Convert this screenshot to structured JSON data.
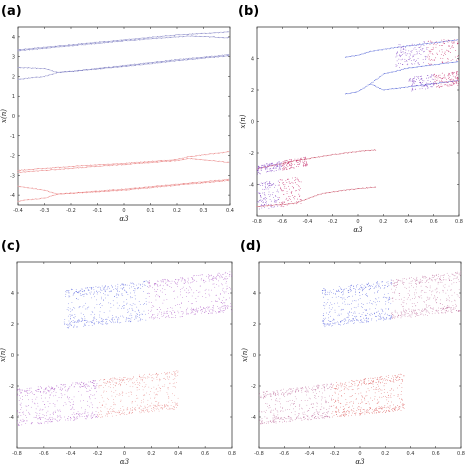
{
  "chart_data": [
    {
      "panel": "(a)",
      "type": "scatter",
      "xlabel": "α3",
      "ylabel": "x(n)",
      "xlim": [
        -0.4,
        0.4
      ],
      "ylim": [
        -4.5,
        4.5
      ],
      "x_ticks": [
        "-0.4",
        "-0.3",
        "-0.2",
        "-0.1",
        "0",
        "0.1",
        "0.2",
        "0.3",
        "0.4"
      ],
      "y_ticks": [
        "4",
        "3",
        "2",
        "1",
        "0",
        "-1",
        "-2",
        "-3",
        "-4"
      ],
      "branches": [
        {
          "color": "#6a6ab8",
          "points": [
            [
              -0.4,
              3.35
            ],
            [
              -0.2,
              3.6
            ],
            [
              0.0,
              3.85
            ],
            [
              0.2,
              4.1
            ],
            [
              0.4,
              4.25
            ]
          ]
        },
        {
          "color": "#6a6ab8",
          "points": [
            [
              -0.4,
              3.3
            ],
            [
              -0.2,
              3.55
            ],
            [
              0.0,
              3.8
            ],
            [
              0.2,
              4.0
            ],
            [
              0.25,
              4.05
            ],
            [
              0.4,
              3.95
            ]
          ]
        },
        {
          "color": "#6a6ab8",
          "points": [
            [
              -0.4,
              2.45
            ],
            [
              -0.3,
              2.4
            ],
            [
              -0.25,
              2.2
            ],
            [
              -0.2,
              2.25
            ],
            [
              0.0,
              2.55
            ],
            [
              0.2,
              2.85
            ],
            [
              0.4,
              3.1
            ]
          ]
        },
        {
          "color": "#6a6ab8",
          "points": [
            [
              -0.4,
              1.85
            ],
            [
              -0.3,
              2.0
            ],
            [
              -0.25,
              2.2
            ],
            [
              0.0,
              2.5
            ],
            [
              0.2,
              2.8
            ],
            [
              0.4,
              3.05
            ]
          ]
        },
        {
          "color": "#e46a6a",
          "points": [
            [
              -0.4,
              -2.75
            ],
            [
              -0.2,
              -2.55
            ],
            [
              0.0,
              -2.4
            ],
            [
              0.2,
              -2.2
            ],
            [
              0.25,
              -2.05
            ],
            [
              0.4,
              -1.8
            ]
          ]
        },
        {
          "color": "#e46a6a",
          "points": [
            [
              -0.4,
              -2.85
            ],
            [
              -0.2,
              -2.65
            ],
            [
              0.0,
              -2.45
            ],
            [
              0.2,
              -2.25
            ],
            [
              0.25,
              -2.15
            ],
            [
              0.4,
              -2.35
            ]
          ]
        },
        {
          "color": "#e46a6a",
          "points": [
            [
              -0.4,
              -3.55
            ],
            [
              -0.3,
              -3.75
            ],
            [
              -0.25,
              -3.95
            ],
            [
              0.0,
              -3.7
            ],
            [
              0.2,
              -3.45
            ],
            [
              0.4,
              -3.2
            ]
          ]
        },
        {
          "color": "#e46a6a",
          "points": [
            [
              -0.4,
              -4.3
            ],
            [
              -0.3,
              -4.15
            ],
            [
              -0.25,
              -3.95
            ],
            [
              0.0,
              -3.75
            ],
            [
              0.2,
              -3.5
            ],
            [
              0.4,
              -3.25
            ]
          ]
        }
      ]
    },
    {
      "panel": "(b)",
      "type": "scatter",
      "xlabel": "α3",
      "ylabel": "x(n)",
      "xlim": [
        -0.8,
        0.8
      ],
      "ylim": [
        -6,
        6
      ],
      "x_ticks": [
        "-0.8",
        "-0.6",
        "-0.4",
        "-0.2",
        "0",
        "0.2",
        "0.4",
        "0.6",
        "0.8"
      ],
      "y_ticks": [
        "4",
        "2",
        "0",
        "-2",
        "-4"
      ],
      "branches": [
        {
          "color": "#3a4ed0",
          "points": [
            [
              -0.1,
              4.1
            ],
            [
              0.0,
              4.2
            ],
            [
              0.1,
              4.45
            ],
            [
              0.3,
              4.7
            ],
            [
              0.5,
              4.9
            ],
            [
              0.8,
              5.2
            ]
          ]
        },
        {
          "color": "#3a4ed0",
          "points": [
            [
              -0.1,
              1.75
            ],
            [
              0.0,
              1.9
            ],
            [
              0.1,
              2.4
            ],
            [
              0.2,
              3.0
            ],
            [
              0.4,
              3.4
            ],
            [
              0.8,
              3.8
            ]
          ]
        },
        {
          "color": "#3a4ed0",
          "points": [
            [
              0.1,
              2.4
            ],
            [
              0.2,
              2.0
            ],
            [
              0.4,
              2.2
            ],
            [
              0.8,
              2.6
            ]
          ]
        },
        {
          "color": "#c0304a",
          "points": [
            [
              -0.8,
              -3.0
            ],
            [
              -0.5,
              -2.5
            ],
            [
              -0.2,
              -2.1
            ],
            [
              0.0,
              -1.9
            ],
            [
              0.15,
              -1.8
            ]
          ]
        },
        {
          "color": "#c0304a",
          "points": [
            [
              -0.8,
              -5.4
            ],
            [
              -0.5,
              -5.2
            ],
            [
              -0.3,
              -4.6
            ],
            [
              -0.1,
              -4.35
            ],
            [
              0.15,
              -4.15
            ]
          ]
        }
      ],
      "chaotic_bands": [
        {
          "x": [
            0.3,
            0.8
          ],
          "y_low": [
            3.4,
            3.8
          ],
          "y_high": [
            4.9,
            5.3
          ]
        },
        {
          "x": [
            0.4,
            0.8
          ],
          "y_low": [
            1.9,
            2.3
          ],
          "y_high": [
            2.8,
            3.2
          ]
        },
        {
          "x": [
            -0.8,
            -0.4
          ],
          "y_low": [
            -3.4,
            -2.8
          ],
          "y_high": [
            -2.8,
            -2.2
          ]
        },
        {
          "x": [
            -0.8,
            -0.45
          ],
          "y_low": [
            -5.6,
            -5.3
          ],
          "y_high": [
            -3.9,
            -3.5
          ]
        }
      ]
    },
    {
      "panel": "(c)",
      "type": "scatter",
      "xlabel": "α3",
      "ylabel": "x(n)",
      "xlim": [
        -0.8,
        0.8
      ],
      "ylim": [
        -6,
        6
      ],
      "x_ticks": [
        "-0.8",
        "-0.6",
        "-0.4",
        "-0.2",
        "0",
        "0.2",
        "0.4",
        "0.6",
        "0.8"
      ],
      "y_ticks": [
        "4",
        "2",
        "0",
        "-2",
        "-4"
      ],
      "bands": [
        {
          "x": [
            -0.45,
            0.8
          ],
          "y_low": [
            1.7,
            2.8
          ],
          "y_high": [
            4.2,
            5.4
          ]
        },
        {
          "x": [
            -0.8,
            0.4
          ],
          "y_low": [
            -4.6,
            -3.5
          ],
          "y_high": [
            -2.2,
            -1.0
          ]
        }
      ],
      "band_colors": [
        "#3b48d8",
        "#9a35b8",
        "#e06a6a"
      ]
    },
    {
      "panel": "(d)",
      "type": "scatter",
      "xlabel": "α3",
      "ylabel": "x(n)",
      "xlim": [
        -0.8,
        0.8
      ],
      "ylim": [
        -6,
        6
      ],
      "x_ticks": [
        "-0.8",
        "-0.6",
        "-0.4",
        "-0.2",
        "0",
        "0.2",
        "0.4",
        "0.6",
        "0.8"
      ],
      "y_ticks": [
        "4",
        "2",
        "0",
        "-2",
        "-4"
      ],
      "bands": [
        {
          "x": [
            -0.3,
            0.8
          ],
          "y_low": [
            1.8,
            2.8
          ],
          "y_high": [
            4.3,
            5.4
          ]
        },
        {
          "x": [
            -0.8,
            0.35
          ],
          "y_low": [
            -4.5,
            -3.6
          ],
          "y_high": [
            -2.4,
            -1.2
          ]
        }
      ],
      "band_colors": [
        "#3b48d8",
        "#b05088",
        "#d43a3a"
      ]
    }
  ]
}
